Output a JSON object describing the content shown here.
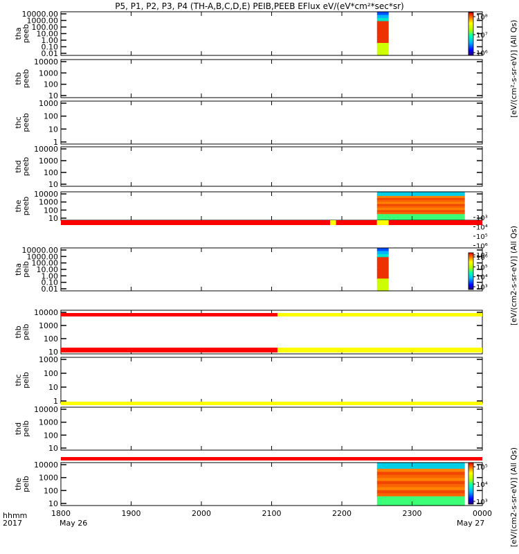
{
  "title": "P5, P1, P2, P3, P4 (TH-A,B,C,D,E) PEIB,PEEB EFlux eV/(eV*cm²*sec*sr)",
  "footer": {
    "row1_label": "hhmm",
    "row2_label": "2017",
    "date_start": "May 26",
    "date_end": "May 27"
  },
  "colorbar_titles": {
    "top": "[eV/(cm²-s-sr-eV)] (All Qs)",
    "middle": "[eV/(cm2-s-sr-eV)] (All Qs)",
    "bottom": "[eV/(cm2-s-sr-eV)] (All Qs)"
  },
  "colors": {
    "flag_red": "#ff0000",
    "flag_yellow": "#ffff00",
    "frame": "#000000"
  },
  "chart_data": {
    "type": "heatmap",
    "x_axis": {
      "label": "hhmm",
      "start": "1800",
      "end": "0000",
      "ticks": [
        "1800",
        "1900",
        "2000",
        "2100",
        "2200",
        "2300",
        "0000"
      ]
    },
    "panels": [
      {
        "probe": "tha",
        "product": "peeb",
        "ylabel": [
          "tha",
          "peeb"
        ],
        "yticks": [
          "10000.00",
          "1000.00",
          "100.00",
          "10.00",
          "1.00",
          "0.10",
          "0.01"
        ],
        "colorbar": {
          "ticks": [
            "10⁸",
            "10⁷",
            "10⁶"
          ]
        },
        "data_intervals": [
          [
            "2230",
            "2240"
          ]
        ]
      },
      {
        "probe": "thb",
        "product": "peeb",
        "ylabel": [
          "thb",
          "peeb"
        ],
        "yticks": [
          "10000",
          "1000",
          "100",
          "10"
        ],
        "data_intervals": []
      },
      {
        "probe": "thc",
        "product": "peeb",
        "ylabel": [
          "thc",
          "peeb"
        ],
        "yticks": [
          "1000",
          "100",
          "10",
          "1"
        ],
        "data_intervals": []
      },
      {
        "probe": "thd",
        "product": "peeb",
        "ylabel": [
          "thd",
          "peeb"
        ],
        "yticks": [
          "10000",
          "1000",
          "100",
          "10"
        ],
        "data_intervals": []
      },
      {
        "probe": "the",
        "product": "peeb",
        "ylabel": [
          "the",
          "peeb"
        ],
        "yticks": [
          "10000",
          "1000",
          "100",
          "10"
        ],
        "colorbar": {
          "ticks": [
            "10⁷",
            "10⁶",
            "10⁵",
            "10⁴",
            "10³"
          ]
        },
        "data_intervals": [
          [
            "2230",
            "2310"
          ],
          [
            "2305",
            "2345"
          ]
        ]
      },
      {
        "probe": "tha",
        "product": "peib",
        "ylabel": [
          "tha",
          "peib"
        ],
        "yticks": [
          "10000.00",
          "1000.00",
          "100.00",
          "10.00",
          "1.00",
          "0.10",
          "0.01"
        ],
        "colorbar": {
          "ticks": [
            "10⁶",
            "10⁵",
            "10⁴",
            "10³"
          ]
        },
        "data_intervals": [
          [
            "2230",
            "2240"
          ]
        ]
      },
      {
        "probe": "thb",
        "product": "peib",
        "ylabel": [
          "thb",
          "peib"
        ],
        "yticks": [
          "10000",
          "1000",
          "100",
          "10"
        ],
        "data_intervals": []
      },
      {
        "probe": "thc",
        "product": "peib",
        "ylabel": [
          "thc",
          "peib"
        ],
        "yticks": [
          "1000",
          "100",
          "10",
          "1"
        ],
        "data_intervals": []
      },
      {
        "probe": "thd",
        "product": "peib",
        "ylabel": [
          "thd",
          "peib"
        ],
        "yticks": [
          "10000",
          "1000",
          "100",
          "10"
        ],
        "data_intervals": []
      },
      {
        "probe": "the",
        "product": "peib",
        "ylabel": [
          "the",
          "peib"
        ],
        "yticks": [
          "10000",
          "1000",
          "100",
          "10"
        ],
        "colorbar": {
          "ticks": [
            "10⁵",
            "10⁴",
            "10³"
          ]
        },
        "data_intervals": [
          [
            "2230",
            "2310"
          ],
          [
            "2305",
            "2345"
          ]
        ]
      }
    ],
    "flag_bars": [
      {
        "after_panel": 4,
        "segments": [
          [
            "1800",
            "2150",
            "red"
          ],
          [
            "2150",
            "2155",
            "yellow"
          ],
          [
            "2155",
            "2230",
            "red"
          ],
          [
            "2230",
            "2240",
            "yellow"
          ],
          [
            "2240",
            "0000",
            "red"
          ]
        ]
      },
      {
        "after_panel": 5,
        "segments": [
          [
            "1800",
            "2105",
            "red"
          ],
          [
            "2105",
            "0000",
            "yellow"
          ]
        ]
      },
      {
        "after_panel": 6,
        "segments": [
          [
            "1800",
            "2105",
            "red"
          ],
          [
            "2105",
            "0000",
            "yellow"
          ]
        ]
      },
      {
        "after_panel": 7,
        "segments": [
          [
            "1800",
            "0000",
            "yellow"
          ]
        ]
      },
      {
        "after_panel": 8,
        "segments": [
          [
            "1800",
            "0000",
            "red"
          ]
        ]
      }
    ]
  }
}
